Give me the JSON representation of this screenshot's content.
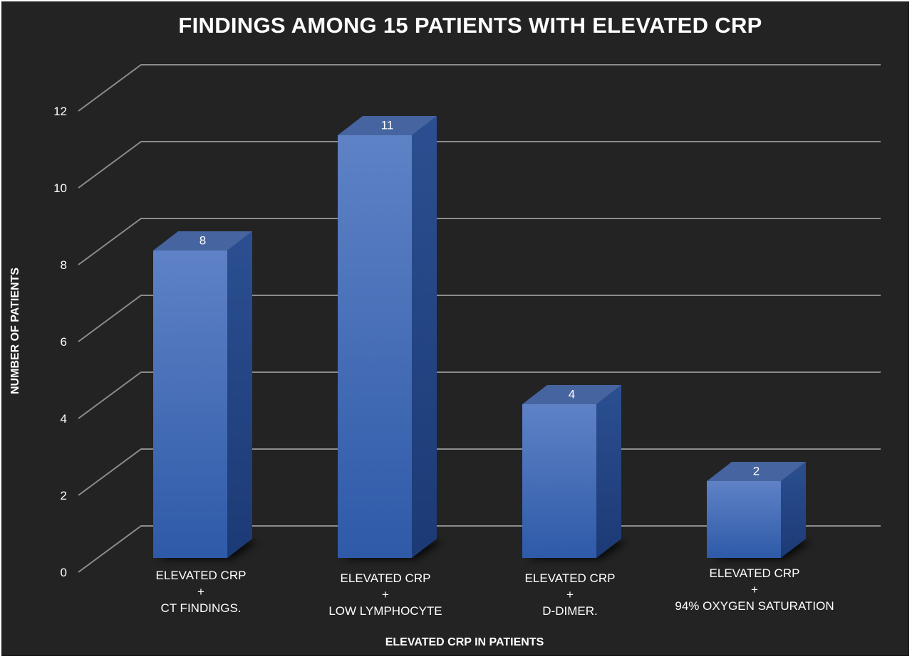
{
  "chart_data": {
    "type": "bar",
    "title": "FINDINGS AMONG 15 PATIENTS WITH ELEVATED CRP",
    "xlabel": "ELEVATED CRP IN PATIENTS",
    "ylabel": "NUMBER OF PATIENTS",
    "ylim": [
      0,
      12
    ],
    "y_ticks": [
      "0",
      "2",
      "4",
      "6",
      "8",
      "10",
      "12"
    ],
    "categories": [
      [
        "ELEVATED CRP",
        "+",
        "CT FINDINGS."
      ],
      [
        "ELEVATED CRP",
        "+",
        "LOW LYMPHOCYTE"
      ],
      [
        "ELEVATED CRP",
        "+",
        "D-DIMER."
      ],
      [
        "ELEVATED CRP",
        "+",
        "94% OXYGEN SATURATION"
      ]
    ],
    "values": [
      8,
      11,
      4,
      2
    ],
    "data_labels": [
      "8",
      "11",
      "4",
      "2"
    ],
    "grid": true,
    "style": "3d-column",
    "colors": {
      "background": "#232323",
      "bar_front_top": "#5f82c6",
      "bar_front_bottom": "#2e5aa8",
      "bar_side": "#24457f",
      "bar_top": "#46649f",
      "gridline": "#8c8c8c",
      "text": "#ffffff"
    }
  }
}
